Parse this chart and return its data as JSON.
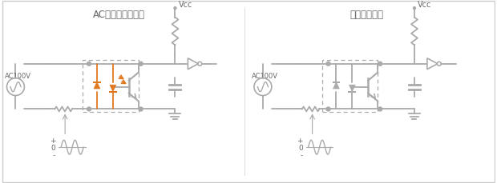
{
  "circuit1_title": "AC入力対応カプラ",
  "circuit2_title": "通常のカプラ",
  "vcc_label": "Vcc",
  "ac_label": "AC100V",
  "wire_color": "#aaaaaa",
  "orange_color": "#e07820",
  "dashed_color": "#aaaaaa",
  "bg_color": "#ffffff",
  "text_color": "#666666",
  "border_color": "#cccccc"
}
